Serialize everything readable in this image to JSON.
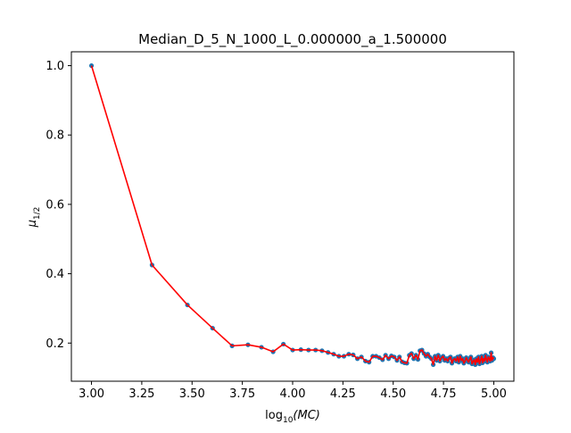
{
  "chart_data": {
    "type": "line",
    "title": "Median_D_5_N_1000_L_0.000000_a_1.500000",
    "xlabel": "log",
    "xlabel_sub": "10",
    "xlabel_arg": "(MC)",
    "ylabel": "μ",
    "ylabel_sub": "1/2",
    "xlim": [
      2.9,
      5.1
    ],
    "ylim": [
      0.09,
      1.04
    ],
    "xticks": [
      3.0,
      3.25,
      3.5,
      3.75,
      4.0,
      4.25,
      4.5,
      4.75,
      5.0
    ],
    "xtick_labels": [
      "3.00",
      "3.25",
      "3.50",
      "3.75",
      "4.00",
      "4.25",
      "4.50",
      "4.75",
      "5.00"
    ],
    "yticks": [
      0.2,
      0.4,
      0.6,
      0.8,
      1.0
    ],
    "ytick_labels": [
      "0.2",
      "0.4",
      "0.6",
      "0.8",
      "1.0"
    ],
    "grid": false,
    "colors": {
      "points": "#1f77b4",
      "line": "#ff0000"
    },
    "series": [
      {
        "x": [
          3.0,
          3.301,
          3.477,
          3.602,
          3.699,
          3.778,
          3.845,
          3.903,
          3.954,
          4.0,
          4.041,
          4.079,
          4.114,
          4.146,
          4.176,
          4.204,
          4.23,
          4.255,
          4.279,
          4.301,
          4.322,
          4.342,
          4.362,
          4.38,
          4.398,
          4.415,
          4.431,
          4.447,
          4.462,
          4.477,
          4.491,
          4.505,
          4.519,
          4.531,
          4.544,
          4.556,
          4.568,
          4.58,
          4.591,
          4.602,
          4.613,
          4.623,
          4.633,
          4.643,
          4.653,
          4.663,
          4.672,
          4.681,
          4.69,
          4.699,
          4.708,
          4.716,
          4.724,
          4.732,
          4.74,
          4.748,
          4.756,
          4.763,
          4.771,
          4.778,
          4.785,
          4.792,
          4.799,
          4.806,
          4.813,
          4.82,
          4.826,
          4.833,
          4.839,
          4.845,
          4.851,
          4.857,
          4.863,
          4.869,
          4.875,
          4.881,
          4.886,
          4.892,
          4.898,
          4.903,
          4.908,
          4.914,
          4.919,
          4.924,
          4.929,
          4.934,
          4.94,
          4.944,
          4.949,
          4.954,
          4.959,
          4.964,
          4.968,
          4.973,
          4.978,
          4.982,
          4.987,
          4.991,
          4.996,
          5.0
        ],
        "y": [
          1.0,
          0.425,
          0.31,
          0.243,
          0.192,
          0.195,
          0.188,
          0.175,
          0.197,
          0.18,
          0.181,
          0.18,
          0.18,
          0.178,
          0.173,
          0.168,
          0.162,
          0.162,
          0.168,
          0.166,
          0.155,
          0.16,
          0.148,
          0.145,
          0.162,
          0.162,
          0.158,
          0.152,
          0.165,
          0.155,
          0.163,
          0.16,
          0.15,
          0.16,
          0.146,
          0.143,
          0.142,
          0.165,
          0.17,
          0.155,
          0.165,
          0.153,
          0.178,
          0.18,
          0.17,
          0.162,
          0.168,
          0.16,
          0.155,
          0.138,
          0.162,
          0.15,
          0.165,
          0.148,
          0.158,
          0.162,
          0.15,
          0.155,
          0.148,
          0.157,
          0.16,
          0.142,
          0.152,
          0.155,
          0.148,
          0.16,
          0.145,
          0.162,
          0.15,
          0.155,
          0.142,
          0.148,
          0.158,
          0.15,
          0.145,
          0.155,
          0.16,
          0.14,
          0.148,
          0.152,
          0.138,
          0.155,
          0.145,
          0.16,
          0.14,
          0.15,
          0.162,
          0.143,
          0.155,
          0.148,
          0.165,
          0.152,
          0.145,
          0.16,
          0.155,
          0.148,
          0.172,
          0.15,
          0.158,
          0.155
        ]
      }
    ]
  }
}
